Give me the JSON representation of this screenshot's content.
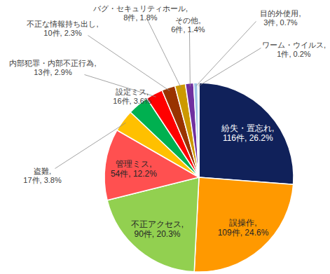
{
  "chart_data": {
    "type": "pie",
    "categories": [
      "紛失・置忘れ,",
      "誤操作,",
      "不正アクセス,",
      "管理ミス,",
      "盗難,",
      "設定ミス,",
      "内部犯罪・内部不正行為,",
      "不正な情報持ち出し,",
      "バグ・セキュリティホール,",
      "その他,",
      "目的外使用,",
      "ワーム・ウイルス,"
    ],
    "values": [
      26.2,
      24.6,
      20.3,
      12.2,
      3.8,
      3.6,
      2.9,
      2.3,
      1.8,
      1.4,
      0.7,
      0.2
    ],
    "counts": [
      116,
      109,
      90,
      54,
      17,
      16,
      13,
      10,
      8,
      6,
      3,
      1
    ],
    "value_labels": [
      "116件, 26.2%",
      "109件, 24.6%",
      "90件, 20.3%",
      "54件, 12.2%",
      "17件, 3.8%",
      "16件, 3.6%",
      "13件, 2.9%",
      "10件, 2.3%",
      "8件, 1.8%",
      "6件, 1.4%",
      "3件, 0.7%",
      "1件, 0.2%"
    ],
    "colors": [
      "#10215a",
      "#ff9900",
      "#92d050",
      "#ff5050",
      "#ffc000",
      "#00b050",
      "#ff0000",
      "#993300",
      "#cc9900",
      "#7030a0",
      "#9dc3e6",
      "#203864"
    ],
    "data_labels": true
  }
}
